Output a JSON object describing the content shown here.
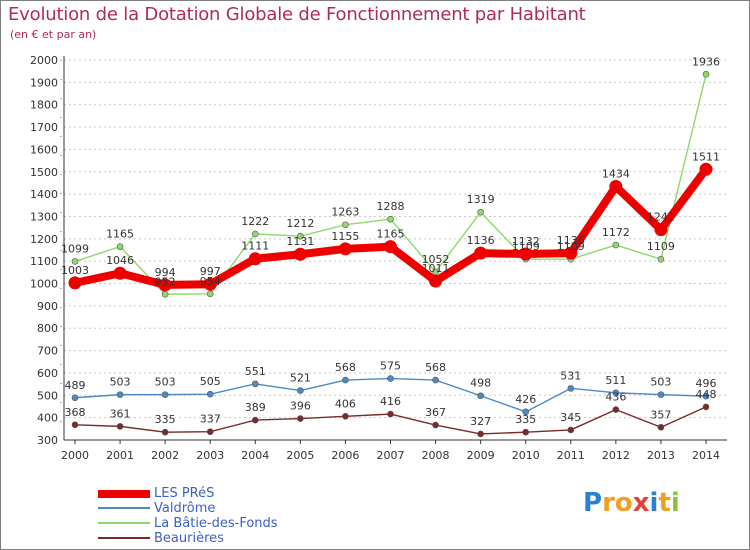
{
  "chart_data": {
    "type": "line",
    "title": "Evolution de la Dotation Globale de Fonctionnement par Habitant",
    "subtitle": "(en € et par an)",
    "xlabel": "",
    "ylabel": "",
    "ylim": [
      300,
      2000
    ],
    "yticks": [
      300,
      400,
      500,
      600,
      700,
      800,
      900,
      1000,
      1100,
      1200,
      1300,
      1400,
      1500,
      1600,
      1700,
      1800,
      1900,
      2000
    ],
    "categories": [
      "2000",
      "2001",
      "2002",
      "2003",
      "2004",
      "2005",
      "2006",
      "2007",
      "2008",
      "2009",
      "2010",
      "2011",
      "2012",
      "2013",
      "2014"
    ],
    "series": [
      {
        "name": "LES PRéS",
        "color": "#ee0000",
        "values": [
          1003,
          1046,
          994,
          997,
          1111,
          1131,
          1155,
          1165,
          1011,
          1136,
          1132,
          1136,
          1434,
          1241,
          1511
        ]
      },
      {
        "name": "Valdrôme",
        "color": "#4d89c4",
        "values": [
          489,
          503,
          503,
          505,
          551,
          521,
          568,
          575,
          568,
          498,
          426,
          531,
          511,
          503,
          496
        ]
      },
      {
        "name": "La Bâtie-des-Fonds",
        "color": "#8fd86a",
        "values": [
          1099,
          1165,
          952,
          954,
          1222,
          1212,
          1263,
          1288,
          1052,
          1319,
          1109,
          1109,
          1172,
          1109,
          1936
        ]
      },
      {
        "name": "Beaurières",
        "color": "#7a2a2a",
        "values": [
          368,
          361,
          335,
          337,
          389,
          396,
          406,
          416,
          367,
          327,
          335,
          345,
          436,
          357,
          448
        ]
      }
    ],
    "legend_position": "bottom-left",
    "grid": "horizontal dotted"
  },
  "logo": {
    "letters": [
      "P",
      "r",
      "o",
      "x",
      "i",
      "t",
      "i"
    ]
  }
}
